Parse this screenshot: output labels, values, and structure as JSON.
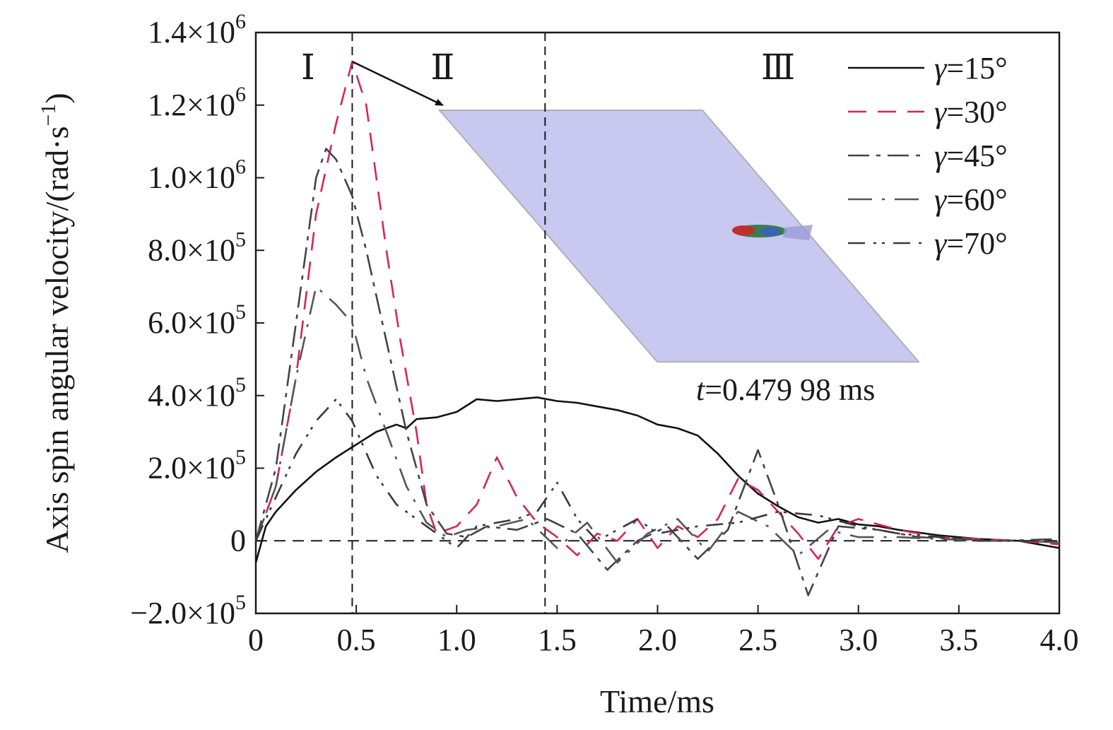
{
  "chart_data": {
    "type": "line",
    "xlabel": "Time/ms",
    "ylabel": "Axis spin angular velocity/(rad·s",
    "ylabel_sup": "−1",
    "ylabel_close": ")",
    "xlim": [
      0,
      4.0
    ],
    "ylim": [
      -200000,
      1400000
    ],
    "x_ticks": [
      0,
      0.5,
      1.0,
      1.5,
      2.0,
      2.5,
      3.0,
      3.5,
      4.0
    ],
    "x_tick_labels": [
      "0",
      "0.5",
      "1.0",
      "1.5",
      "2.0",
      "2.5",
      "3.0",
      "3.5",
      "4.0"
    ],
    "y_ticks": [
      {
        "value": -200000,
        "mant": "−2.0×10",
        "exp": "5"
      },
      {
        "value": 0,
        "mant": "0",
        "exp": ""
      },
      {
        "value": 200000,
        "mant": "2.0×10",
        "exp": "5"
      },
      {
        "value": 400000,
        "mant": "4.0×10",
        "exp": "5"
      },
      {
        "value": 600000,
        "mant": "6.0×10",
        "exp": "5"
      },
      {
        "value": 800000,
        "mant": "8.0×10",
        "exp": "5"
      },
      {
        "value": 1000000,
        "mant": "1.0×10",
        "exp": "6"
      },
      {
        "value": 1200000,
        "mant": "1.2×10",
        "exp": "6"
      },
      {
        "value": 1400000,
        "mant": "1.4×10",
        "exp": "6"
      }
    ],
    "grid": false,
    "legend_position": "top-right",
    "region_boundaries": [
      0.48,
      1.44
    ],
    "regions": [
      "Ⅰ",
      "Ⅱ",
      "Ⅲ"
    ],
    "annotation": {
      "italic": "t",
      "text": "=0.479 98 ms",
      "arrow_from": [
        0.48,
        1320000
      ],
      "arrow_to": [
        0.93,
        1200000
      ]
    },
    "colors": {
      "axes": "#1a1a1a",
      "inset_fill": "#c8c8f0",
      "inset_edge": "#b0b0b0"
    },
    "series": [
      {
        "name": "γ=15°",
        "legend_prefix": "γ",
        "legend_suffix": "=15°",
        "color": "#111111",
        "dash": "solid",
        "x": [
          0,
          0.05,
          0.1,
          0.2,
          0.3,
          0.4,
          0.5,
          0.6,
          0.7,
          0.75,
          0.8,
          0.9,
          1.0,
          1.1,
          1.2,
          1.3,
          1.4,
          1.5,
          1.6,
          1.7,
          1.8,
          1.9,
          2.0,
          2.1,
          2.2,
          2.3,
          2.4,
          2.5,
          2.6,
          2.7,
          2.8,
          2.9,
          3.0,
          3.1,
          3.2,
          3.4,
          3.6,
          3.8,
          4.0
        ],
        "y": [
          -60000,
          40000,
          80000,
          140000,
          190000,
          230000,
          265000,
          300000,
          320000,
          310000,
          335000,
          340000,
          355000,
          390000,
          385000,
          390000,
          395000,
          385000,
          380000,
          370000,
          360000,
          345000,
          320000,
          310000,
          290000,
          240000,
          180000,
          130000,
          95000,
          65000,
          50000,
          60000,
          45000,
          40000,
          30000,
          15000,
          5000,
          0,
          -20000
        ]
      },
      {
        "name": "γ=30°",
        "legend_prefix": "γ",
        "legend_suffix": "=30°",
        "color": "#d8245a",
        "dash": "26,16",
        "x": [
          0,
          0.1,
          0.2,
          0.3,
          0.4,
          0.48,
          0.55,
          0.65,
          0.72,
          0.8,
          0.85,
          0.9,
          1.0,
          1.1,
          1.2,
          1.3,
          1.4,
          1.5,
          1.6,
          1.7,
          1.8,
          1.9,
          2.0,
          2.1,
          2.2,
          2.3,
          2.4,
          2.5,
          2.6,
          2.7,
          2.8,
          2.9,
          3.0,
          3.2,
          3.4,
          3.6,
          3.8,
          4.0
        ],
        "y": [
          0,
          150000,
          450000,
          900000,
          1150000,
          1320000,
          1200000,
          800000,
          550000,
          300000,
          100000,
          20000,
          40000,
          100000,
          230000,
          120000,
          50000,
          10000,
          -40000,
          20000,
          0,
          60000,
          -20000,
          40000,
          10000,
          60000,
          170000,
          140000,
          80000,
          20000,
          -50000,
          40000,
          60000,
          30000,
          10000,
          5000,
          0,
          -10000
        ]
      },
      {
        "name": "γ=45°",
        "legend_prefix": "γ",
        "legend_suffix": "=45°",
        "color": "#444444",
        "dash": "30,10,6,10",
        "x": [
          0,
          0.1,
          0.2,
          0.3,
          0.35,
          0.4,
          0.48,
          0.55,
          0.65,
          0.75,
          0.85,
          0.95,
          1.05,
          1.15,
          1.3,
          1.45,
          1.6,
          1.75,
          1.9,
          2.05,
          2.2,
          2.35,
          2.5,
          2.6,
          2.75,
          2.9,
          3.1,
          3.3,
          3.5,
          3.7,
          4.0
        ],
        "y": [
          0,
          200000,
          600000,
          1000000,
          1080000,
          1050000,
          950000,
          800000,
          550000,
          300000,
          100000,
          20000,
          10000,
          40000,
          30000,
          60000,
          20000,
          -80000,
          0,
          40000,
          -50000,
          30000,
          250000,
          100000,
          -150000,
          40000,
          30000,
          10000,
          5000,
          0,
          5000
        ]
      },
      {
        "name": "γ=60°",
        "legend_prefix": "γ",
        "legend_suffix": "=60°",
        "color": "#555555",
        "dash": "34,14,4,14",
        "x": [
          0,
          0.1,
          0.2,
          0.3,
          0.4,
          0.48,
          0.55,
          0.65,
          0.75,
          0.85,
          0.95,
          1.05,
          1.2,
          1.35,
          1.5,
          1.65,
          1.8,
          1.95,
          2.1,
          2.25,
          2.4,
          2.55,
          2.7,
          2.85,
          3.0,
          3.2,
          3.4,
          3.6,
          3.8,
          4.0
        ],
        "y": [
          0,
          150000,
          450000,
          700000,
          650000,
          600000,
          450000,
          300000,
          150000,
          50000,
          10000,
          30000,
          40000,
          60000,
          -20000,
          50000,
          -60000,
          20000,
          60000,
          -30000,
          80000,
          40000,
          -40000,
          30000,
          10000,
          10000,
          5000,
          0,
          0,
          -5000
        ]
      },
      {
        "name": "γ=70°",
        "legend_prefix": "γ",
        "legend_suffix": "=70°",
        "color": "#3a3a3a",
        "dash": "24,12,4,8,4,12",
        "x": [
          0,
          0.1,
          0.2,
          0.3,
          0.4,
          0.48,
          0.6,
          0.7,
          0.8,
          0.9,
          1.0,
          1.1,
          1.2,
          1.3,
          1.4,
          1.5,
          1.6,
          1.7,
          1.8,
          1.9,
          2.0,
          2.2,
          2.4,
          2.6,
          2.8,
          3.0,
          3.2,
          3.4,
          3.6,
          3.8,
          4.0
        ],
        "y": [
          0,
          120000,
          240000,
          330000,
          390000,
          330000,
          180000,
          100000,
          60000,
          20000,
          -20000,
          40000,
          50000,
          60000,
          80000,
          160000,
          60000,
          0,
          30000,
          60000,
          20000,
          40000,
          50000,
          80000,
          70000,
          40000,
          20000,
          10000,
          0,
          0,
          0
        ]
      }
    ]
  }
}
